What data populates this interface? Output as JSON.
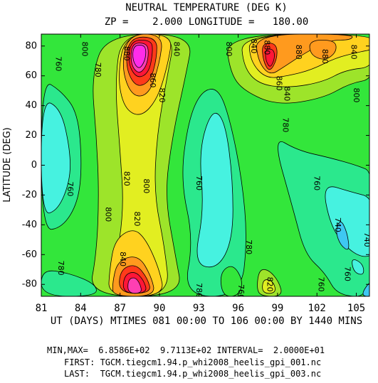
{
  "chart_data": {
    "type": "heatmap",
    "title": "NEUTRAL TEMPERATURE (DEG K)",
    "subtitle": "ZP =    2.000 LONGITUDE =   180.00",
    "xlabel": "UT (DAYS) MTIMES 081 00:00 TO 106 00:00 BY 1440 MINS",
    "ylabel": "LATITUDE (DEG)",
    "xlim": [
      81,
      106
    ],
    "ylim": [
      -88,
      88
    ],
    "x_ticks": [
      "81",
      "84",
      "87",
      "90",
      "93",
      "96",
      "99",
      "102",
      "105"
    ],
    "y_ticks": [
      "-80",
      "-60",
      "-40",
      "-20",
      "0",
      "20",
      "40",
      "60",
      "80"
    ],
    "contour_labels": [
      {
        "label": "880",
        "x": 87.5,
        "y": 75
      },
      {
        "label": "860",
        "x": 89.5,
        "y": 57
      },
      {
        "label": "840",
        "x": 91.3,
        "y": 78
      },
      {
        "label": "820",
        "x": 90.2,
        "y": 47
      },
      {
        "label": "800",
        "x": 84.3,
        "y": 78
      },
      {
        "label": "780",
        "x": 85.3,
        "y": 64
      },
      {
        "label": "760",
        "x": 82.3,
        "y": 68
      },
      {
        "label": "800",
        "x": 95.3,
        "y": 78
      },
      {
        "label": "840",
        "x": 97.2,
        "y": 80
      },
      {
        "label": "880",
        "x": 98.2,
        "y": 79
      },
      {
        "label": "880",
        "x": 100.6,
        "y": 76
      },
      {
        "label": "880",
        "x": 102.6,
        "y": 73
      },
      {
        "label": "840",
        "x": 104.8,
        "y": 76
      },
      {
        "label": "860",
        "x": 99.1,
        "y": 55
      },
      {
        "label": "840",
        "x": 99.7,
        "y": 48
      },
      {
        "label": "800",
        "x": 105.0,
        "y": 47
      },
      {
        "label": "780",
        "x": 99.6,
        "y": 27
      },
      {
        "label": "760",
        "x": 102.0,
        "y": -12
      },
      {
        "label": "740",
        "x": 103.6,
        "y": -40
      },
      {
        "label": "740",
        "x": 105.8,
        "y": -50
      },
      {
        "label": "820",
        "x": 87.5,
        "y": -9
      },
      {
        "label": "800",
        "x": 86.1,
        "y": -33
      },
      {
        "label": "800",
        "x": 89.0,
        "y": -14
      },
      {
        "label": "820",
        "x": 88.3,
        "y": -36
      },
      {
        "label": "760",
        "x": 93.0,
        "y": -12
      },
      {
        "label": "760",
        "x": 83.2,
        "y": -16
      },
      {
        "label": "840",
        "x": 87.2,
        "y": -63
      },
      {
        "label": "780",
        "x": 82.5,
        "y": -69
      },
      {
        "label": "780",
        "x": 96.8,
        "y": -55
      },
      {
        "label": "780",
        "x": 93.0,
        "y": -84
      },
      {
        "label": "760",
        "x": 96.2,
        "y": -85
      },
      {
        "label": "820",
        "x": 98.4,
        "y": -80
      },
      {
        "label": "760",
        "x": 102.3,
        "y": -80
      },
      {
        "label": "760",
        "x": 104.3,
        "y": -73
      }
    ],
    "colors": {
      "level_700": "#2f6bd6",
      "level_720": "#3ec8f2",
      "level_740": "#46f2e0",
      "level_760": "#2be88d",
      "level_780": "#33e63b",
      "level_800": "#9de42a",
      "level_820": "#e2ee21",
      "level_840": "#ffd21f",
      "level_860": "#ff9a1e",
      "level_880": "#ff3a1a",
      "level_900": "#ff1638",
      "level_920": "#ff3fb2",
      "level_940": "#ff2cea",
      "contour_line": "#000000"
    }
  },
  "info": {
    "minmax": "MIN,MAX=  6.8586E+02  9.7113E+02 INTERVAL=  2.0000E+01",
    "first": "FIRST: TGCM.tiegcm1.94.p_whi2008_heelis_gpi_001.nc",
    "last": "LAST:  TGCM.tiegcm1.94.p_whi2008_heelis_gpi_003.nc"
  }
}
